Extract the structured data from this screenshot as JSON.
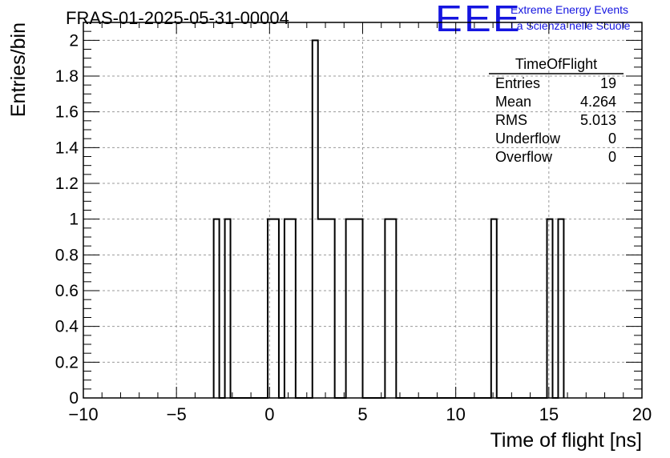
{
  "header": {
    "title": "FRAS-01-2025-05-31-00004",
    "logo_text": "EEE",
    "logo_line1": "Extreme Energy Events",
    "logo_line2": "La Scienza nelle Scuole",
    "logo_color": "#1515e0"
  },
  "chart_data": {
    "type": "bar",
    "histogram_name": "TimeOfFlight",
    "xlabel": "Time of flight [ns]",
    "ylabel": "Entries/bin",
    "xlim": [
      -10,
      20
    ],
    "ylim": [
      0,
      2.1
    ],
    "x_ticks": [
      -10,
      -5,
      0,
      5,
      10,
      15,
      20
    ],
    "y_ticks": [
      0,
      0.2,
      0.4,
      0.6,
      0.8,
      1,
      1.2,
      1.4,
      1.6,
      1.8,
      2
    ],
    "grid": true,
    "bin_width": 0.3,
    "bins": [
      {
        "x_low": -3.0,
        "x_high": -2.7,
        "count": 1
      },
      {
        "x_low": -2.4,
        "x_high": -2.1,
        "count": 1
      },
      {
        "x_low": -0.1,
        "x_high": 0.5,
        "count": 1
      },
      {
        "x_low": 0.8,
        "x_high": 1.4,
        "count": 1
      },
      {
        "x_low": 2.3,
        "x_high": 2.6,
        "count": 2
      },
      {
        "x_low": 2.6,
        "x_high": 3.5,
        "count": 1
      },
      {
        "x_low": 4.1,
        "x_high": 5.0,
        "count": 1
      },
      {
        "x_low": 6.2,
        "x_high": 6.8,
        "count": 1
      },
      {
        "x_low": 11.9,
        "x_high": 12.2,
        "count": 1
      },
      {
        "x_low": 14.9,
        "x_high": 15.2,
        "count": 1
      },
      {
        "x_low": 15.5,
        "x_high": 15.8,
        "count": 1
      }
    ],
    "stats": {
      "title": "TimeOfFlight",
      "rows": [
        {
          "label": "Entries",
          "value": "19"
        },
        {
          "label": "Mean",
          "value": "4.264"
        },
        {
          "label": "RMS",
          "value": "5.013"
        },
        {
          "label": "Underflow",
          "value": "0"
        },
        {
          "label": "Overflow",
          "value": "0"
        }
      ],
      "placement": "top-right"
    }
  }
}
